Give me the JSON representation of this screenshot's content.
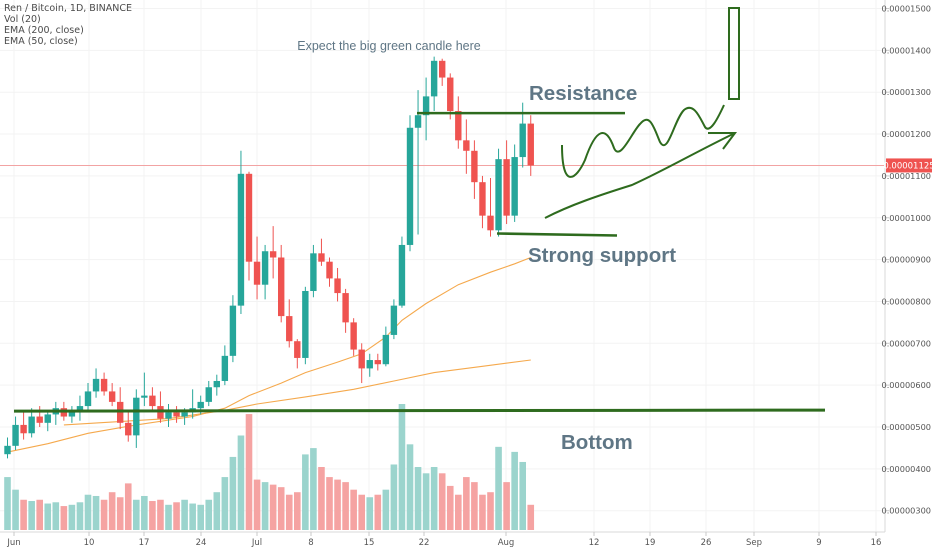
{
  "legend": {
    "symbol": "Ren / Bitcoin, 1D, BINANCE",
    "vol": "Vol (20)",
    "ema200": "EMA (200, close)",
    "ema50": "EMA (50, close)"
  },
  "colors": {
    "up": "#26a69a",
    "down": "#ef5350",
    "up_volume": "#9bd4cd",
    "down_volume": "#f5a3a2",
    "ema": "#f5a94d",
    "drawing": "#2e6b1e",
    "price_line": "#f2a3a3",
    "price_label_bg": "#ef5350",
    "annotation_text": "#5f7685",
    "axis_text": "#555555"
  },
  "annotations": {
    "expect": "Expect the big green candle here",
    "resistance": "Resistance",
    "support": "Strong support",
    "bottom": "Bottom"
  },
  "chart_data": {
    "type": "candlestick",
    "title": "Ren / Bitcoin, 1D, BINANCE",
    "y_axis": {
      "min": 2.6e-06,
      "max": 1.52e-05,
      "ticks": [
        "0.00001500",
        "0.00001400",
        "0.00001300",
        "0.00001200",
        "0.00001100",
        "0.00001000",
        "0.00000900",
        "0.00000800",
        "0.00000700",
        "0.00000600",
        "0.00000500",
        "0.00000400",
        "0.00000300"
      ],
      "current_price": "0.00001125"
    },
    "x_axis": {
      "ticks": [
        "Jun",
        "10",
        "17",
        "24",
        "Jul",
        "8",
        "15",
        "22",
        "Aug",
        "12",
        "19",
        "26",
        "Sep",
        "9",
        "16"
      ]
    },
    "candles": [
      {
        "d": "Jun 2",
        "o": 4.35,
        "h": 4.75,
        "l": 4.25,
        "c": 4.55
      },
      {
        "d": "Jun 3",
        "o": 4.55,
        "h": 5.25,
        "l": 4.45,
        "c": 5.05
      },
      {
        "d": "Jun 4",
        "o": 5.05,
        "h": 5.4,
        "l": 4.7,
        "c": 4.85
      },
      {
        "d": "Jun 5",
        "o": 4.85,
        "h": 5.45,
        "l": 4.75,
        "c": 5.25
      },
      {
        "d": "Jun 6",
        "o": 5.25,
        "h": 5.5,
        "l": 5.0,
        "c": 5.1
      },
      {
        "d": "Jun 7",
        "o": 5.1,
        "h": 5.4,
        "l": 4.9,
        "c": 5.3
      },
      {
        "d": "Jun 8",
        "o": 5.3,
        "h": 5.6,
        "l": 5.05,
        "c": 5.45
      },
      {
        "d": "Jun 9",
        "o": 5.45,
        "h": 5.6,
        "l": 5.15,
        "c": 5.25
      },
      {
        "d": "Jun 10",
        "o": 5.25,
        "h": 5.5,
        "l": 5.1,
        "c": 5.4
      },
      {
        "d": "Jun 11",
        "o": 5.4,
        "h": 5.75,
        "l": 5.15,
        "c": 5.5
      },
      {
        "d": "Jun 12",
        "o": 5.5,
        "h": 6.05,
        "l": 5.4,
        "c": 5.85
      },
      {
        "d": "Jun 13",
        "o": 5.85,
        "h": 6.4,
        "l": 5.7,
        "c": 6.15
      },
      {
        "d": "Jun 14",
        "o": 6.15,
        "h": 6.3,
        "l": 5.75,
        "c": 5.85
      },
      {
        "d": "Jun 15",
        "o": 5.85,
        "h": 6.05,
        "l": 5.5,
        "c": 5.6
      },
      {
        "d": "Jun 16",
        "o": 5.6,
        "h": 5.95,
        "l": 4.95,
        "c": 5.1
      },
      {
        "d": "Jun 17",
        "o": 5.1,
        "h": 5.4,
        "l": 4.65,
        "c": 4.8
      },
      {
        "d": "Jun 18",
        "o": 4.8,
        "h": 5.9,
        "l": 4.5,
        "c": 5.7
      },
      {
        "d": "Jun 19",
        "o": 5.7,
        "h": 6.3,
        "l": 5.5,
        "c": 5.75
      },
      {
        "d": "Jun 20",
        "o": 5.75,
        "h": 5.95,
        "l": 5.4,
        "c": 5.5
      },
      {
        "d": "Jun 21",
        "o": 5.5,
        "h": 5.85,
        "l": 5.1,
        "c": 5.2
      },
      {
        "d": "Jun 22",
        "o": 5.2,
        "h": 5.55,
        "l": 5.0,
        "c": 5.35
      },
      {
        "d": "Jun 23",
        "o": 5.35,
        "h": 5.5,
        "l": 5.1,
        "c": 5.25
      },
      {
        "d": "Jun 24",
        "o": 5.25,
        "h": 5.45,
        "l": 5.05,
        "c": 5.35
      },
      {
        "d": "Jun 25",
        "o": 5.35,
        "h": 5.9,
        "l": 5.2,
        "c": 5.45
      },
      {
        "d": "Jun 26",
        "o": 5.45,
        "h": 5.75,
        "l": 5.3,
        "c": 5.6
      },
      {
        "d": "Jun 27",
        "o": 5.6,
        "h": 6.1,
        "l": 5.5,
        "c": 5.95
      },
      {
        "d": "Jun 28",
        "o": 5.95,
        "h": 6.25,
        "l": 5.75,
        "c": 6.1
      },
      {
        "d": "Jun 29",
        "o": 6.1,
        "h": 6.95,
        "l": 6.0,
        "c": 6.7
      },
      {
        "d": "Jun 30",
        "o": 6.7,
        "h": 8.15,
        "l": 6.55,
        "c": 7.9
      },
      {
        "d": "Jul 1",
        "o": 7.9,
        "h": 11.6,
        "l": 7.7,
        "c": 11.05
      },
      {
        "d": "Jul 2",
        "o": 11.05,
        "h": 11.1,
        "l": 8.5,
        "c": 8.95
      },
      {
        "d": "Jul 3",
        "o": 8.95,
        "h": 9.55,
        "l": 8.05,
        "c": 8.4
      },
      {
        "d": "Jul 4",
        "o": 8.4,
        "h": 9.35,
        "l": 8.05,
        "c": 9.2
      },
      {
        "d": "Jul 5",
        "o": 9.2,
        "h": 9.8,
        "l": 8.55,
        "c": 9.05
      },
      {
        "d": "Jul 6",
        "o": 9.05,
        "h": 9.35,
        "l": 7.5,
        "c": 7.65
      },
      {
        "d": "Jul 7",
        "o": 7.65,
        "h": 8.05,
        "l": 6.9,
        "c": 7.05
      },
      {
        "d": "Jul 8",
        "o": 7.05,
        "h": 7.1,
        "l": 6.4,
        "c": 6.65
      },
      {
        "d": "Jul 9",
        "o": 6.65,
        "h": 8.35,
        "l": 6.5,
        "c": 8.25
      },
      {
        "d": "Jul 10",
        "o": 8.25,
        "h": 9.35,
        "l": 8.1,
        "c": 9.15
      },
      {
        "d": "Jul 11",
        "o": 9.15,
        "h": 9.5,
        "l": 8.85,
        "c": 8.95
      },
      {
        "d": "Jul 12",
        "o": 8.95,
        "h": 9.05,
        "l": 8.35,
        "c": 8.55
      },
      {
        "d": "Jul 13",
        "o": 8.55,
        "h": 8.8,
        "l": 8.0,
        "c": 8.2
      },
      {
        "d": "Jul 14",
        "o": 8.2,
        "h": 8.3,
        "l": 7.25,
        "c": 7.5
      },
      {
        "d": "Jul 15",
        "o": 7.5,
        "h": 7.6,
        "l": 6.7,
        "c": 6.85
      },
      {
        "d": "Jul 16",
        "o": 6.85,
        "h": 7.0,
        "l": 6.05,
        "c": 6.4
      },
      {
        "d": "Jul 17",
        "o": 6.4,
        "h": 6.75,
        "l": 6.2,
        "c": 6.6
      },
      {
        "d": "Jul 18",
        "o": 6.6,
        "h": 6.75,
        "l": 6.35,
        "c": 6.5
      },
      {
        "d": "Jul 19",
        "o": 6.5,
        "h": 7.4,
        "l": 6.45,
        "c": 7.2
      },
      {
        "d": "Jul 20",
        "o": 7.2,
        "h": 8.05,
        "l": 7.1,
        "c": 7.9
      },
      {
        "d": "Jul 21",
        "o": 7.9,
        "h": 9.55,
        "l": 7.85,
        "c": 9.35
      },
      {
        "d": "Jul 22",
        "o": 9.35,
        "h": 12.45,
        "l": 9.2,
        "c": 12.15
      },
      {
        "d": "Jul 23",
        "o": 12.15,
        "h": 13.05,
        "l": 9.6,
        "c": 12.45
      },
      {
        "d": "Jul 24",
        "o": 12.45,
        "h": 13.35,
        "l": 11.85,
        "c": 12.9
      },
      {
        "d": "Jul 25",
        "o": 12.9,
        "h": 13.85,
        "l": 12.55,
        "c": 13.75
      },
      {
        "d": "Jul 26",
        "o": 13.75,
        "h": 13.8,
        "l": 13.15,
        "c": 13.35
      },
      {
        "d": "Jul 27",
        "o": 13.35,
        "h": 13.45,
        "l": 12.35,
        "c": 12.55
      },
      {
        "d": "Jul 28",
        "o": 12.55,
        "h": 12.9,
        "l": 11.65,
        "c": 11.85
      },
      {
        "d": "Jul 29",
        "o": 11.85,
        "h": 12.35,
        "l": 11.05,
        "c": 11.6
      },
      {
        "d": "Jul 30",
        "o": 11.6,
        "h": 11.85,
        "l": 10.45,
        "c": 10.85
      },
      {
        "d": "Jul 31",
        "o": 10.85,
        "h": 11.0,
        "l": 9.75,
        "c": 10.05
      },
      {
        "d": "Aug 1",
        "o": 10.05,
        "h": 10.95,
        "l": 9.55,
        "c": 9.7
      },
      {
        "d": "Aug 2",
        "o": 9.7,
        "h": 11.65,
        "l": 9.55,
        "c": 11.4
      },
      {
        "d": "Aug 3",
        "o": 11.4,
        "h": 11.85,
        "l": 9.85,
        "c": 10.05
      },
      {
        "d": "Aug 4",
        "o": 10.05,
        "h": 11.75,
        "l": 9.9,
        "c": 11.45
      },
      {
        "d": "Aug 5",
        "o": 11.45,
        "h": 12.75,
        "l": 11.2,
        "c": 12.25
      },
      {
        "d": "Aug 6",
        "o": 12.25,
        "h": 12.45,
        "l": 11.0,
        "c": 11.25
      }
    ],
    "volume": [
      0.42,
      0.32,
      0.24,
      0.23,
      0.24,
      0.21,
      0.22,
      0.19,
      0.2,
      0.22,
      0.28,
      0.27,
      0.24,
      0.3,
      0.26,
      0.37,
      0.24,
      0.27,
      0.23,
      0.24,
      0.2,
      0.22,
      0.24,
      0.21,
      0.2,
      0.24,
      0.3,
      0.42,
      0.58,
      0.75,
      0.92,
      0.4,
      0.38,
      0.36,
      0.34,
      0.28,
      0.3,
      0.6,
      0.65,
      0.5,
      0.42,
      0.4,
      0.38,
      0.32,
      0.28,
      0.26,
      0.28,
      0.32,
      0.52,
      1.0,
      0.68,
      0.5,
      0.45,
      0.5,
      0.45,
      0.35,
      0.28,
      0.42,
      0.38,
      0.28,
      0.3,
      0.66,
      0.38,
      0.62,
      0.54,
      0.2
    ],
    "volume_max": 1.0,
    "ema50": [
      [
        0,
        4.4
      ],
      [
        5,
        4.6
      ],
      [
        10,
        4.85
      ],
      [
        16,
        5.05
      ],
      [
        23,
        5.25
      ],
      [
        27,
        5.45
      ],
      [
        30,
        5.75
      ],
      [
        34,
        6.05
      ],
      [
        37,
        6.3
      ],
      [
        41,
        6.55
      ],
      [
        44,
        6.75
      ],
      [
        47,
        7.15
      ],
      [
        49,
        7.55
      ],
      [
        52,
        7.95
      ],
      [
        56,
        8.4
      ],
      [
        60,
        8.7
      ],
      [
        63,
        8.9
      ],
      [
        65,
        9.05
      ]
    ],
    "ema200": [
      [
        7,
        5.05
      ],
      [
        20,
        5.2
      ],
      [
        27,
        5.4
      ],
      [
        31,
        5.55
      ],
      [
        37,
        5.72
      ],
      [
        43,
        5.9
      ],
      [
        48,
        6.1
      ],
      [
        53,
        6.3
      ],
      [
        59,
        6.45
      ],
      [
        65,
        6.6
      ]
    ],
    "drawing_lines": {
      "bottom_level": 5.38,
      "resistance_level": 12.5,
      "support_level": 9.6
    }
  }
}
